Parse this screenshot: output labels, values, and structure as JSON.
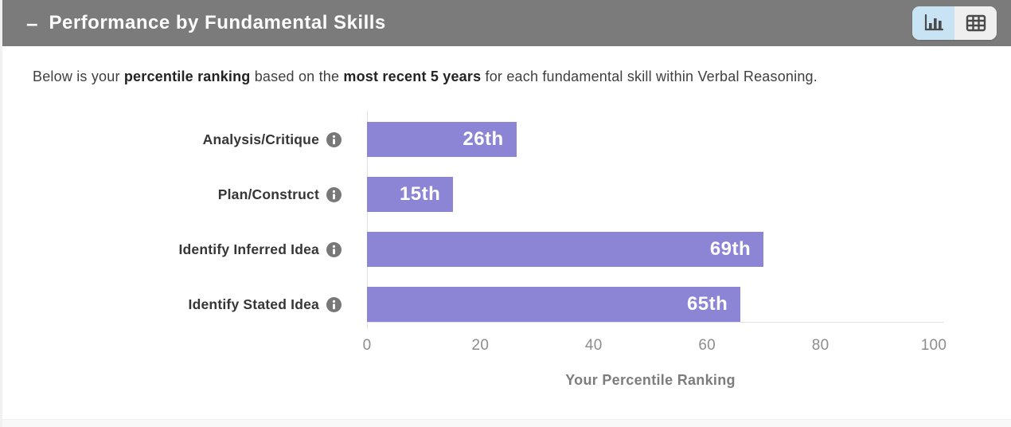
{
  "header": {
    "collapse_label": "–",
    "title": "Performance by Fundamental Skills",
    "view_toggle": {
      "chart_view_active": true,
      "table_view_active": false
    }
  },
  "description": {
    "part1": "Below is your ",
    "bold1": "percentile ranking",
    "part2": " based on the ",
    "bold2": "most recent 5 years",
    "part3": " for each fundamental skill within Verbal Reasoning."
  },
  "chart_data": {
    "type": "bar",
    "orientation": "horizontal",
    "categories": [
      "Analysis/Critique",
      "Plan/Construct",
      "Identify Inferred Idea",
      "Identify Stated Idea"
    ],
    "values": [
      26,
      15,
      69,
      65
    ],
    "value_labels": [
      "26th",
      "15th",
      "69th",
      "65th"
    ],
    "title": "",
    "xlabel": "Your Percentile Ranking",
    "ylabel": "",
    "xticks": [
      0,
      20,
      40,
      60,
      80,
      100
    ],
    "xlim": [
      0,
      100
    ],
    "grid": false,
    "legend": "none",
    "bar_color": "#8c85d6",
    "value_label_color": "#ffffff",
    "has_info_icon_per_category": true
  },
  "colors": {
    "header_bg": "#7b7b7b",
    "header_text": "#fdfdfd",
    "toggle_active_bg": "#c7e3f4",
    "toggle_inactive_bg": "#efefef",
    "toggle_icon": "#4a4a4a",
    "bar": "#8c85d6",
    "axis_line": "#e2e2e2",
    "tick_text": "#8d8d8d",
    "axis_title_text": "#7d7d7d",
    "info_icon": "#787878"
  }
}
